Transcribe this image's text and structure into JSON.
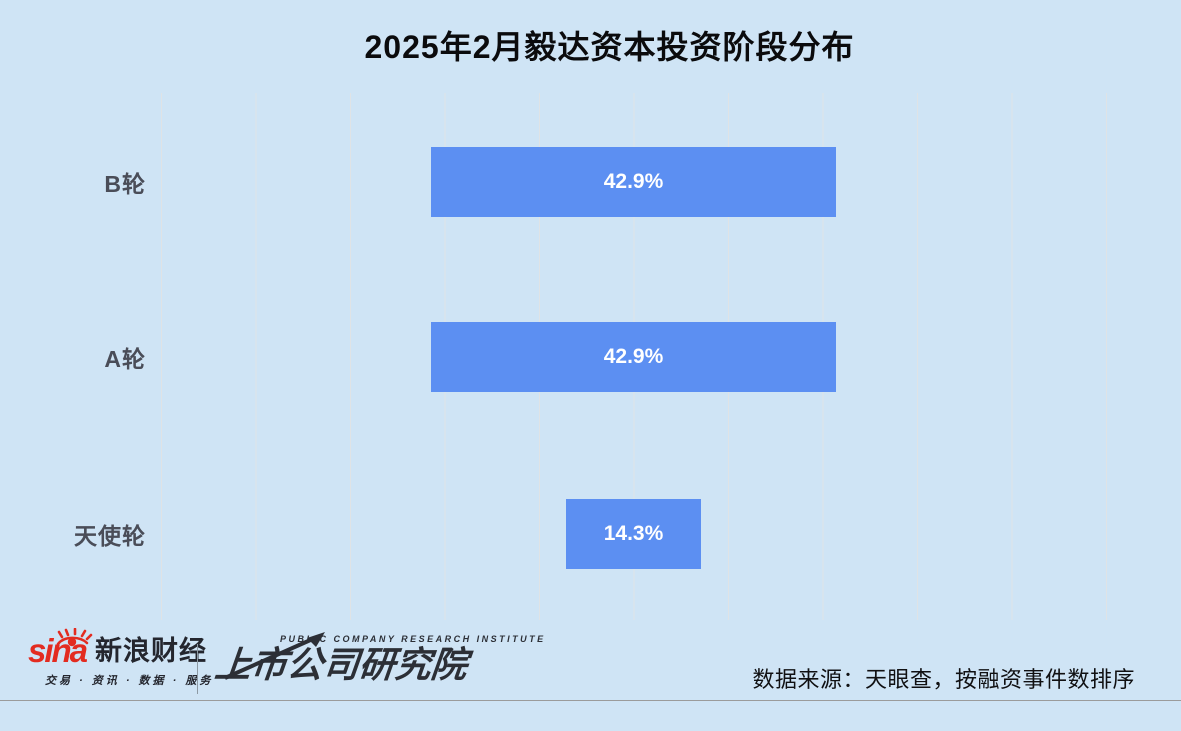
{
  "title": "2025年2月毅达资本投资阶段分布",
  "chart_data": {
    "type": "bar",
    "orientation": "horizontal-centered",
    "title": "2025年2月毅达资本投资阶段分布",
    "categories": [
      "B轮",
      "A轮",
      "天使轮"
    ],
    "values": [
      42.9,
      42.9,
      14.3
    ],
    "value_labels": [
      "42.9%",
      "42.9%",
      "14.3%"
    ],
    "xlabel": "",
    "ylabel": "",
    "xlim": [
      0,
      100
    ],
    "grid": "vertical gridlines, 11 lines spaced 10%",
    "legend": "none",
    "bar_color": "#5c8ff2",
    "value_label_color": "#ffffff"
  },
  "footer": {
    "sina_logo_word": "sina",
    "sina_brand": "新浪财经",
    "sina_tagline": "交易 · 资讯 · 数据 · 服务",
    "pcri_en": "PUBLIC COMPANY RESEARCH INSTITUTE",
    "pcri_cn": "上市公司研究院",
    "source_note": "数据来源：天眼查，按融资事件数排序"
  },
  "colors": {
    "background": "#cfe4f5",
    "bar": "#5c8ff2",
    "gridline": "#dfe3e6",
    "category_label": "#4a4d58",
    "title": "#0b0b0d",
    "sina_red": "#e32b20",
    "logo_dark": "#2c2f36",
    "footer_rule": "#9b9b9b"
  }
}
